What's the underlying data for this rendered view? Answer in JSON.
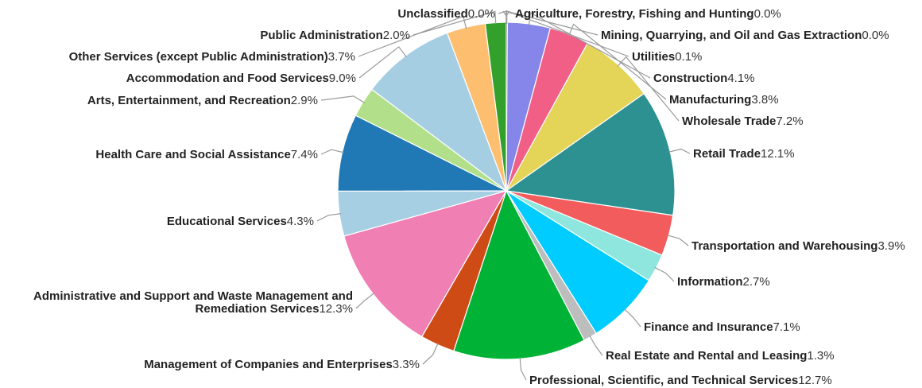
{
  "chart_data": {
    "type": "pie",
    "title": "",
    "slices": [
      {
        "label": "Agriculture, Forestry, Fishing and Hunting",
        "value": 0.0,
        "display": "0.0%",
        "color": "#8c8c8c"
      },
      {
        "label": "Mining, Quarrying, and Oil and Gas Extraction",
        "value": 0.0,
        "display": "0.0%",
        "color": "#8c8c8c"
      },
      {
        "label": "Utilities",
        "value": 0.1,
        "display": "0.1%",
        "color": "#8b8b8b"
      },
      {
        "label": "Construction",
        "value": 4.1,
        "display": "4.1%",
        "color": "#8585ea"
      },
      {
        "label": "Manufacturing",
        "value": 3.8,
        "display": "3.8%",
        "color": "#f15f87"
      },
      {
        "label": "Wholesale Trade",
        "value": 7.2,
        "display": "7.2%",
        "color": "#e4d458"
      },
      {
        "label": "Retail Trade",
        "value": 12.1,
        "display": "12.1%",
        "color": "#2e9191"
      },
      {
        "label": "Transportation and Warehousing",
        "value": 3.9,
        "display": "3.9%",
        "color": "#f35c5c"
      },
      {
        "label": "Information",
        "value": 2.7,
        "display": "2.7%",
        "color": "#8ee6df"
      },
      {
        "label": "Finance and Insurance",
        "value": 7.1,
        "display": "7.1%",
        "color": "#00ccff"
      },
      {
        "label": "Real Estate and Rental and Leasing",
        "value": 1.3,
        "display": "1.3%",
        "color": "#bdbdbd"
      },
      {
        "label": "Professional, Scientific, and Technical Services",
        "value": 12.7,
        "display": "12.7%",
        "color": "#00b336"
      },
      {
        "label": "Management of Companies and Enterprises",
        "value": 3.3,
        "display": "3.3%",
        "color": "#cf4b15"
      },
      {
        "label": "Administrative and Support and Waste Management and Remediation Services",
        "value": 12.3,
        "display": "12.3%",
        "color": "#f07fb4"
      },
      {
        "label": "Educational Services",
        "value": 4.3,
        "display": "4.3%",
        "color": "#a7cfe3"
      },
      {
        "label": "Health Care and Social Assistance",
        "value": 7.4,
        "display": "7.4%",
        "color": "#2078b4"
      },
      {
        "label": "Arts, Entertainment, and Recreation",
        "value": 2.9,
        "display": "2.9%",
        "color": "#b2df8a"
      },
      {
        "label": "Accommodation and Food Services",
        "value": 9.0,
        "display": "9.0%",
        "color": "#a6cee3"
      },
      {
        "label": "Other Services (except Public Administration)",
        "value": 3.7,
        "display": "3.7%",
        "color": "#fdbf6f"
      },
      {
        "label": "Public Administration",
        "value": 2.0,
        "display": "2.0%",
        "color": "#33a02c"
      },
      {
        "label": "Unclassified",
        "value": 0.0,
        "display": "0.0%",
        "color": "#8c8c8c"
      }
    ],
    "label_lines": {
      "Administrative and Support and Waste Management and Remediation Services": [
        "Administrative and Support and Waste Management and",
        "Remediation Services"
      ]
    },
    "legend": "none",
    "start_angle": "top, clockwise"
  }
}
